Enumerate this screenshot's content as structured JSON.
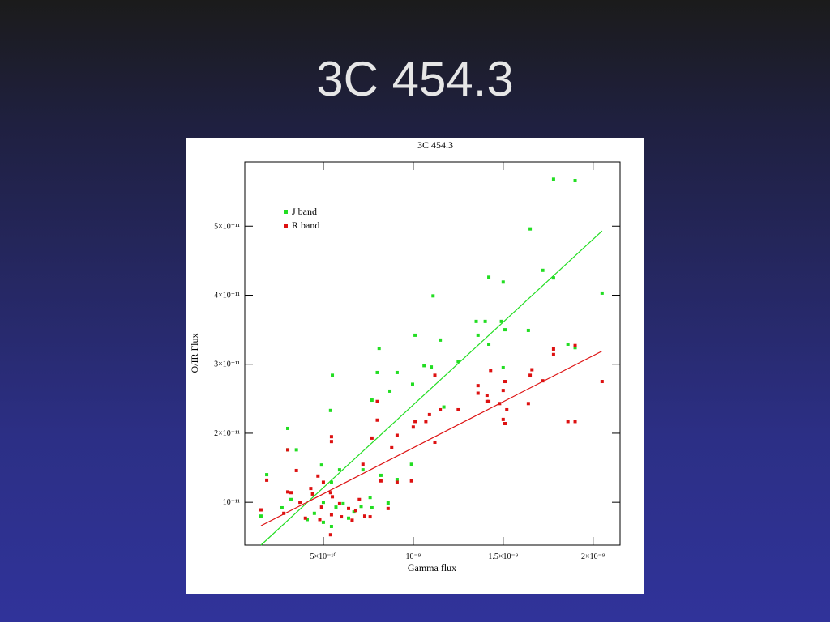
{
  "slide_title": "3C 454.3",
  "chart_data": {
    "type": "scatter",
    "title": "3C 454.3",
    "x_label": "Gamma flux",
    "y_label": "O/IR Flux",
    "xlim": [
      6.3e-11,
      2.15e-09
    ],
    "ylim": [
      3.8e-12,
      5.93e-11
    ],
    "xticks": [
      {
        "value": 5e-10,
        "label": "5×10⁻¹⁰"
      },
      {
        "value": 1e-09,
        "label": "10⁻⁹"
      },
      {
        "value": 1.5e-09,
        "label": "1.5×10⁻⁹"
      },
      {
        "value": 2e-09,
        "label": "2×10⁻⁹"
      }
    ],
    "yticks": [
      {
        "value": 1e-11,
        "label": "10⁻¹¹"
      },
      {
        "value": 2e-11,
        "label": "2×10⁻¹¹"
      },
      {
        "value": 3e-11,
        "label": "3×10⁻¹¹"
      },
      {
        "value": 4e-11,
        "label": "4×10⁻¹¹"
      },
      {
        "value": 5e-11,
        "label": "5×10⁻¹¹"
      }
    ],
    "legend": "upper left",
    "series": [
      {
        "name": "J band",
        "color": "#22dd22",
        "x": [
          1.78e-09,
          1.9e-09,
          1.65e-09,
          1.72e-09,
          1.78e-09,
          1.42e-09,
          1.5e-09,
          1.11e-09,
          2.05e-09,
          1.35e-09,
          1.4e-09,
          1.49e-09,
          1.64e-09,
          1.51e-09,
          1.36e-09,
          1.15e-09,
          1.01e-09,
          1.42e-09,
          1.86e-09,
          1.9e-09,
          8.1e-10,
          1.25e-09,
          1.06e-09,
          1.1e-09,
          1.5e-09,
          5.5e-10,
          9.1e-10,
          8e-10,
          9.96e-10,
          8.7e-10,
          7.7e-10,
          1.17e-09,
          5.4e-10,
          3.02e-10,
          3.02e-10,
          3.5e-10,
          9.9e-10,
          4.9e-10,
          5.9e-10,
          7.2e-10,
          1.85e-10,
          8.2e-10,
          5.45e-10,
          9.1e-10,
          1.53e-10,
          2.7e-10,
          4.1e-10,
          5e-10,
          5.7e-10,
          6.1e-10,
          6.7e-10,
          7.1e-10,
          7.6e-10,
          7.7e-10,
          5.45e-10,
          5e-10,
          4.5e-10,
          3.2e-10,
          6.4e-10,
          8.6e-10
        ],
        "values": [
          5.68e-11,
          5.66e-11,
          4.96e-11,
          4.36e-11,
          4.25e-11,
          4.26e-11,
          4.19e-11,
          3.99e-11,
          4.03e-11,
          3.62e-11,
          3.62e-11,
          3.62e-11,
          3.49e-11,
          3.5e-11,
          3.42e-11,
          3.35e-11,
          3.42e-11,
          3.29e-11,
          3.29e-11,
          3.24e-11,
          3.23e-11,
          3.04e-11,
          2.98e-11,
          2.96e-11,
          2.95e-11,
          2.84e-11,
          2.88e-11,
          2.88e-11,
          2.71e-11,
          2.61e-11,
          2.48e-11,
          2.38e-11,
          2.33e-11,
          2.07e-11,
          1.76e-11,
          1.76e-11,
          1.55e-11,
          1.54e-11,
          1.47e-11,
          1.47e-11,
          1.4e-11,
          1.39e-11,
          1.29e-11,
          1.33e-11,
          8e-12,
          9.2e-12,
          7.5e-12,
          1e-11,
          9.3e-12,
          9.8e-12,
          8.6e-12,
          9.4e-12,
          1.07e-11,
          9.2e-12,
          6.5e-12,
          7.1e-12,
          8.4e-12,
          1.04e-11,
          7.7e-12,
          9.9e-12
        ],
        "fit_x": [
          1.53e-10,
          2.05e-09
        ],
        "fit_y": [
          3.8e-12,
          4.93e-11
        ]
      },
      {
        "name": "R band",
        "color": "#dd1111",
        "x": [
          1.9e-09,
          1.78e-09,
          1.78e-09,
          2.05e-09,
          1.72e-09,
          1.66e-09,
          1.65e-09,
          1.43e-09,
          1.51e-09,
          1.36e-09,
          1.36e-09,
          1.5e-09,
          1.41e-09,
          1.41e-09,
          1.42e-09,
          1.48e-09,
          1.64e-09,
          1.52e-09,
          1.25e-09,
          1.15e-09,
          1.5e-09,
          1.51e-09,
          1.86e-09,
          1.9e-09,
          1.12e-09,
          1.09e-09,
          1.01e-09,
          1.07e-09,
          1.12e-09,
          1e-09,
          8e-10,
          8e-10,
          7.7e-10,
          9.1e-10,
          8.8e-10,
          5.45e-10,
          5.45e-10,
          3.02e-10,
          3.5e-10,
          7.2e-10,
          4.7e-10,
          1.85e-10,
          3.02e-10,
          3.2e-10,
          4.3e-10,
          4.4e-10,
          5.4e-10,
          5.5e-10,
          5e-10,
          8.2e-10,
          9.1e-10,
          9.9e-10,
          1.53e-10,
          2.8e-10,
          3.7e-10,
          4e-10,
          4.8e-10,
          5.45e-10,
          5.9e-10,
          6.4e-10,
          6.8e-10,
          7.3e-10,
          7.6e-10,
          8.6e-10,
          5.4e-10,
          4.9e-10,
          6.6e-10,
          6e-10,
          7e-10
        ],
        "values": [
          3.27e-11,
          3.22e-11,
          3.14e-11,
          2.75e-11,
          2.76e-11,
          2.92e-11,
          2.84e-11,
          2.91e-11,
          2.75e-11,
          2.69e-11,
          2.58e-11,
          2.62e-11,
          2.55e-11,
          2.46e-11,
          2.46e-11,
          2.43e-11,
          2.43e-11,
          2.34e-11,
          2.34e-11,
          2.34e-11,
          2.2e-11,
          2.14e-11,
          2.17e-11,
          2.17e-11,
          2.84e-11,
          2.27e-11,
          2.17e-11,
          2.17e-11,
          1.87e-11,
          2.09e-11,
          2.46e-11,
          2.19e-11,
          1.93e-11,
          1.97e-11,
          1.79e-11,
          1.95e-11,
          1.88e-11,
          1.76e-11,
          1.46e-11,
          1.55e-11,
          1.38e-11,
          1.32e-11,
          1.15e-11,
          1.14e-11,
          1.2e-11,
          1.12e-11,
          1.14e-11,
          1.08e-11,
          1.29e-11,
          1.31e-11,
          1.29e-11,
          1.31e-11,
          8.9e-12,
          8.4e-12,
          1e-11,
          7.7e-12,
          7.5e-12,
          8.2e-12,
          9.8e-12,
          9.1e-12,
          8.8e-12,
          8e-12,
          7.9e-12,
          9.1e-12,
          5.3e-12,
          9.3e-12,
          7.4e-12,
          7.9e-12,
          1.04e-11
        ],
        "fit_x": [
          1.53e-10,
          2.05e-09
        ],
        "fit_y": [
          6.6e-12,
          3.19e-11
        ]
      }
    ]
  }
}
